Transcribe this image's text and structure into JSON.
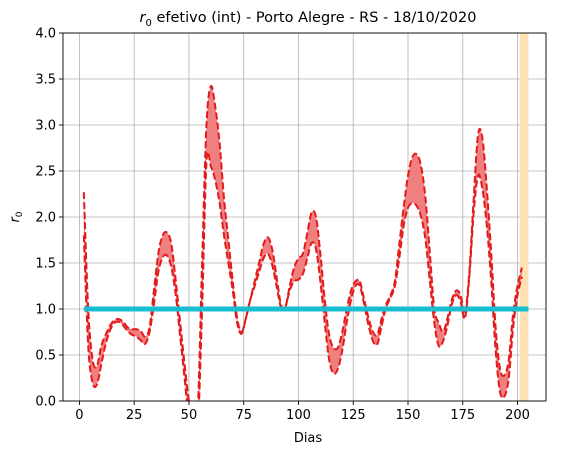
{
  "chart_data": {
    "type": "line",
    "title_symbol": "r",
    "title_subscript": "0",
    "title_rest": " efetivo (int) - Porto Alegre - RS - 18/10/2020",
    "xlabel": "Dias",
    "ylabel_symbol": "r",
    "ylabel_subscript": "0",
    "xlim": [
      -7.5,
      213
    ],
    "ylim": [
      0,
      4
    ],
    "xticks": [
      0,
      25,
      50,
      75,
      100,
      125,
      150,
      175,
      200
    ],
    "yticks": [
      0.0,
      0.5,
      1.0,
      1.5,
      2.0,
      2.5,
      3.0,
      3.5,
      4.0
    ],
    "grid": true,
    "colors": {
      "upper": "#e31a1c",
      "lower": "#e31a1c",
      "band": "#f08080",
      "threshold": "#17becf",
      "highlight": "#ffe0b3"
    },
    "highlight_span": [
      201,
      205
    ],
    "threshold": {
      "value": 1.0,
      "x": [
        2,
        205
      ]
    },
    "x": [
      2,
      4,
      6,
      8,
      10,
      12,
      14,
      16,
      18,
      20,
      22,
      24,
      26,
      28,
      30,
      32,
      34,
      36,
      38,
      40,
      42,
      44,
      46,
      48,
      50,
      52,
      54,
      56,
      58,
      60,
      62,
      64,
      66,
      68,
      70,
      72,
      74,
      76,
      78,
      80,
      82,
      84,
      86,
      88,
      90,
      92,
      94,
      96,
      98,
      100,
      102,
      104,
      106,
      108,
      110,
      112,
      114,
      116,
      118,
      120,
      122,
      124,
      126,
      128,
      130,
      132,
      134,
      136,
      138,
      140,
      142,
      144,
      146,
      148,
      150,
      152,
      154,
      156,
      158,
      160,
      162,
      164,
      166,
      168,
      170,
      172,
      174,
      176,
      178,
      180,
      182,
      184,
      186,
      188,
      190,
      192,
      194,
      196,
      198,
      200,
      202
    ],
    "series": [
      {
        "values": [
          2.27,
          1.0,
          0.45,
          0.38,
          0.6,
          0.72,
          0.82,
          0.88,
          0.89,
          0.86,
          0.8,
          0.78,
          0.78,
          0.76,
          0.7,
          0.8,
          1.2,
          1.6,
          1.8,
          1.83,
          1.7,
          1.3,
          0.85,
          0.4,
          0.0,
          -0.2,
          -0.1,
          1.5,
          3.0,
          3.42,
          3.2,
          2.8,
          2.2,
          1.75,
          1.3,
          0.9,
          0.75,
          0.9,
          1.1,
          1.3,
          1.5,
          1.7,
          1.78,
          1.65,
          1.35,
          1.05,
          1.02,
          1.25,
          1.45,
          1.55,
          1.6,
          1.82,
          2.05,
          2.0,
          1.6,
          1.1,
          0.72,
          0.58,
          0.58,
          0.75,
          1.0,
          1.2,
          1.3,
          1.3,
          1.1,
          0.9,
          0.75,
          0.72,
          0.9,
          1.05,
          1.15,
          1.3,
          1.7,
          2.1,
          2.45,
          2.65,
          2.68,
          2.55,
          2.2,
          1.6,
          1.0,
          0.85,
          0.75,
          0.9,
          1.1,
          1.2,
          1.15,
          0.95,
          1.4,
          2.2,
          2.9,
          2.85,
          2.3,
          1.6,
          0.8,
          0.35,
          0.28,
          0.45,
          0.95,
          1.25,
          1.45
        ]
      },
      {
        "values": [
          1.8,
          0.6,
          0.2,
          0.18,
          0.4,
          0.62,
          0.77,
          0.85,
          0.86,
          0.82,
          0.76,
          0.72,
          0.7,
          0.66,
          0.62,
          0.75,
          1.05,
          1.4,
          1.56,
          1.58,
          1.45,
          1.15,
          0.7,
          0.25,
          -0.2,
          -0.3,
          -0.3,
          1.0,
          2.6,
          2.55,
          2.4,
          2.15,
          1.8,
          1.5,
          1.2,
          0.85,
          0.73,
          0.9,
          1.1,
          1.25,
          1.4,
          1.55,
          1.6,
          1.48,
          1.25,
          1.02,
          1.02,
          1.2,
          1.3,
          1.32,
          1.38,
          1.55,
          1.72,
          1.65,
          1.3,
          0.85,
          0.45,
          0.3,
          0.35,
          0.55,
          0.85,
          1.1,
          1.25,
          1.25,
          1.05,
          0.82,
          0.65,
          0.62,
          0.82,
          1.02,
          1.12,
          1.25,
          1.55,
          1.9,
          2.1,
          2.15,
          2.12,
          2.0,
          1.75,
          1.3,
          0.85,
          0.6,
          0.65,
          0.82,
          1.05,
          1.15,
          1.08,
          0.9,
          1.35,
          2.05,
          2.45,
          2.3,
          1.9,
          1.3,
          0.55,
          0.1,
          0.05,
          0.25,
          0.8,
          1.15,
          1.35
        ]
      }
    ]
  }
}
